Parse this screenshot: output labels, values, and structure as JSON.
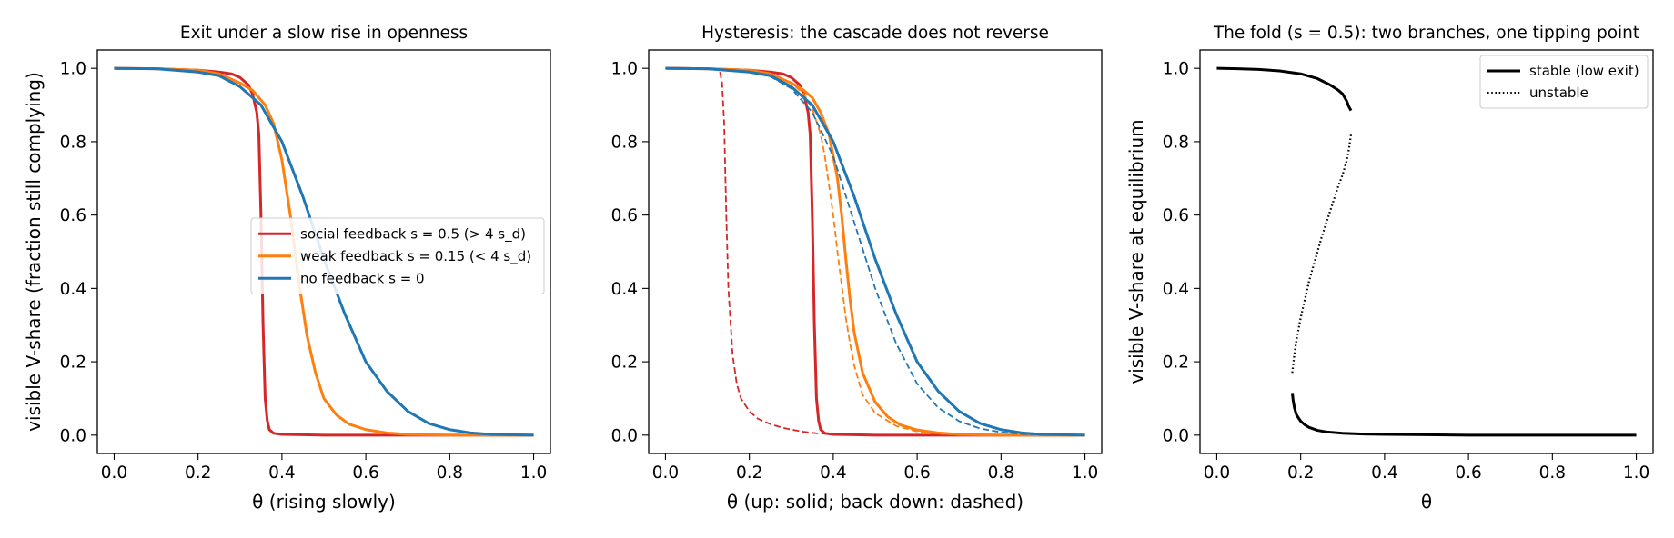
{
  "colors": {
    "social": "#d62728",
    "weak": "#ff7f0e",
    "none": "#1f77b4",
    "stable": "#000000",
    "unstable": "#000000"
  },
  "chart_data": [
    {
      "type": "line",
      "title": "Exit under a slow rise in openness",
      "xlabel": "θ (rising slowly)",
      "ylabel": "visible V-share (fraction still complying)",
      "xlim": [
        -0.04,
        1.04
      ],
      "ylim": [
        -0.05,
        1.05
      ],
      "xticks": [
        "0.0",
        "0.2",
        "0.4",
        "0.6",
        "0.8",
        "1.0"
      ],
      "yticks": [
        "0.0",
        "0.2",
        "0.4",
        "0.6",
        "0.8",
        "1.0"
      ],
      "grid": false,
      "legend_position": "center-right",
      "series": [
        {
          "name": "social feedback s = 0.5 (> 4 s_d)",
          "color_key": "social",
          "style": "solid",
          "x": [
            0.0,
            0.1,
            0.2,
            0.25,
            0.28,
            0.3,
            0.32,
            0.33,
            0.34,
            0.345,
            0.35,
            0.355,
            0.36,
            0.365,
            0.37,
            0.38,
            0.4,
            0.45,
            0.5,
            0.6,
            0.8,
            1.0
          ],
          "y": [
            1.0,
            0.999,
            0.995,
            0.99,
            0.985,
            0.975,
            0.955,
            0.93,
            0.88,
            0.82,
            0.6,
            0.3,
            0.1,
            0.04,
            0.015,
            0.005,
            0.002,
            0.001,
            0.0,
            0.0,
            0.0,
            0.0
          ]
        },
        {
          "name": "weak feedback s = 0.15 (< 4 s_d)",
          "color_key": "weak",
          "style": "solid",
          "x": [
            0.0,
            0.1,
            0.2,
            0.25,
            0.3,
            0.33,
            0.36,
            0.38,
            0.4,
            0.42,
            0.44,
            0.46,
            0.48,
            0.5,
            0.53,
            0.56,
            0.6,
            0.65,
            0.7,
            0.8,
            0.9,
            1.0
          ],
          "y": [
            1.0,
            0.999,
            0.995,
            0.985,
            0.96,
            0.94,
            0.9,
            0.85,
            0.75,
            0.6,
            0.42,
            0.27,
            0.17,
            0.1,
            0.055,
            0.03,
            0.015,
            0.006,
            0.002,
            0.0,
            0.0,
            0.0
          ]
        },
        {
          "name": "no feedback s = 0",
          "color_key": "none",
          "style": "solid",
          "x": [
            0.0,
            0.1,
            0.2,
            0.25,
            0.3,
            0.35,
            0.4,
            0.45,
            0.5,
            0.55,
            0.6,
            0.65,
            0.7,
            0.75,
            0.8,
            0.85,
            0.9,
            1.0
          ],
          "y": [
            1.0,
            0.999,
            0.99,
            0.98,
            0.95,
            0.9,
            0.8,
            0.65,
            0.48,
            0.33,
            0.2,
            0.12,
            0.065,
            0.032,
            0.015,
            0.006,
            0.002,
            0.0
          ]
        }
      ]
    },
    {
      "type": "line",
      "title": "Hysteresis: the cascade does not reverse",
      "xlabel": "θ (up: solid; back down: dashed)",
      "ylabel": "",
      "xlim": [
        -0.04,
        1.04
      ],
      "ylim": [
        -0.05,
        1.05
      ],
      "xticks": [
        "0.0",
        "0.2",
        "0.4",
        "0.6",
        "0.8",
        "1.0"
      ],
      "yticks": [
        "0.0",
        "0.2",
        "0.4",
        "0.6",
        "0.8",
        "1.0"
      ],
      "grid": false,
      "series": [
        {
          "color_key": "social",
          "style": "solid",
          "x": [
            0.0,
            0.1,
            0.2,
            0.25,
            0.28,
            0.3,
            0.32,
            0.33,
            0.34,
            0.345,
            0.35,
            0.355,
            0.36,
            0.365,
            0.37,
            0.38,
            0.4,
            0.45,
            0.5,
            0.6,
            0.8,
            1.0
          ],
          "y": [
            1.0,
            0.999,
            0.995,
            0.99,
            0.985,
            0.975,
            0.955,
            0.93,
            0.88,
            0.82,
            0.6,
            0.3,
            0.1,
            0.04,
            0.015,
            0.005,
            0.002,
            0.001,
            0.0,
            0.0,
            0.0,
            0.0
          ]
        },
        {
          "color_key": "social",
          "style": "dashed",
          "x": [
            0.13,
            0.135,
            0.14,
            0.145,
            0.15,
            0.16,
            0.17,
            0.18,
            0.2,
            0.22,
            0.25,
            0.28,
            0.3,
            0.33,
            0.36,
            0.38,
            0.4,
            0.5,
            0.6,
            0.8,
            1.0
          ],
          "y": [
            0.99,
            0.96,
            0.85,
            0.6,
            0.4,
            0.22,
            0.14,
            0.1,
            0.065,
            0.045,
            0.03,
            0.02,
            0.015,
            0.009,
            0.005,
            0.004,
            0.003,
            0.001,
            0.0,
            0.0,
            0.0
          ]
        },
        {
          "color_key": "weak",
          "style": "solid",
          "x": [
            0.0,
            0.1,
            0.2,
            0.25,
            0.3,
            0.33,
            0.35,
            0.37,
            0.39,
            0.41,
            0.42,
            0.43,
            0.44,
            0.45,
            0.47,
            0.5,
            0.53,
            0.56,
            0.6,
            0.65,
            0.7,
            0.8,
            0.9,
            1.0
          ],
          "y": [
            1.0,
            0.999,
            0.995,
            0.985,
            0.96,
            0.94,
            0.92,
            0.88,
            0.82,
            0.7,
            0.6,
            0.48,
            0.37,
            0.28,
            0.17,
            0.09,
            0.05,
            0.028,
            0.014,
            0.006,
            0.002,
            0.0,
            0.0,
            0.0
          ]
        },
        {
          "color_key": "weak",
          "style": "dashed",
          "x": [
            0.0,
            0.1,
            0.2,
            0.25,
            0.3,
            0.33,
            0.35,
            0.37,
            0.38,
            0.39,
            0.4,
            0.41,
            0.42,
            0.43,
            0.44,
            0.45,
            0.47,
            0.5,
            0.55,
            0.6,
            0.65,
            0.7,
            0.8,
            1.0
          ],
          "y": [
            1.0,
            0.999,
            0.995,
            0.985,
            0.96,
            0.93,
            0.89,
            0.82,
            0.76,
            0.68,
            0.6,
            0.5,
            0.41,
            0.32,
            0.25,
            0.19,
            0.11,
            0.06,
            0.025,
            0.01,
            0.004,
            0.001,
            0.0,
            0.0
          ]
        },
        {
          "color_key": "none",
          "style": "solid",
          "x": [
            0.0,
            0.1,
            0.2,
            0.25,
            0.3,
            0.35,
            0.4,
            0.45,
            0.5,
            0.55,
            0.6,
            0.65,
            0.7,
            0.75,
            0.8,
            0.85,
            0.9,
            1.0
          ],
          "y": [
            1.0,
            0.999,
            0.99,
            0.98,
            0.95,
            0.9,
            0.8,
            0.65,
            0.48,
            0.33,
            0.2,
            0.12,
            0.065,
            0.032,
            0.015,
            0.006,
            0.002,
            0.0
          ]
        },
        {
          "color_key": "none",
          "style": "dashed",
          "x": [
            0.0,
            0.1,
            0.2,
            0.25,
            0.3,
            0.35,
            0.4,
            0.45,
            0.5,
            0.55,
            0.6,
            0.65,
            0.7,
            0.75,
            0.8,
            0.85,
            0.9,
            1.0
          ],
          "y": [
            1.0,
            0.999,
            0.99,
            0.978,
            0.945,
            0.88,
            0.76,
            0.58,
            0.4,
            0.25,
            0.14,
            0.075,
            0.038,
            0.018,
            0.008,
            0.003,
            0.001,
            0.0
          ]
        }
      ]
    },
    {
      "type": "line",
      "title": "The fold (s = 0.5): two branches, one tipping point",
      "xlabel": "θ",
      "ylabel": "visible V-share at equilibrium",
      "xlim": [
        -0.04,
        1.04
      ],
      "ylim": [
        -0.05,
        1.05
      ],
      "xticks": [
        "0.0",
        "0.2",
        "0.4",
        "0.6",
        "0.8",
        "1.0"
      ],
      "yticks": [
        "0.0",
        "0.2",
        "0.4",
        "0.6",
        "0.8",
        "1.0"
      ],
      "grid": false,
      "legend_position": "top-right",
      "series": [
        {
          "name": "stable (low exit)",
          "color_key": "stable",
          "style": "solid",
          "legend_style": "solid",
          "x": [
            0.0,
            0.05,
            0.1,
            0.15,
            0.2,
            0.24,
            0.27,
            0.29,
            0.3,
            0.31,
            0.315,
            0.32
          ],
          "y": [
            1.0,
            0.999,
            0.997,
            0.993,
            0.985,
            0.972,
            0.955,
            0.94,
            0.93,
            0.91,
            0.895,
            0.885
          ]
        },
        {
          "color_key": "stable",
          "style": "solid",
          "x": [
            0.18,
            0.182,
            0.185,
            0.19,
            0.2,
            0.21,
            0.22,
            0.24,
            0.26,
            0.3,
            0.35,
            0.4,
            0.5,
            0.6,
            0.8,
            1.0
          ],
          "y": [
            0.115,
            0.095,
            0.075,
            0.055,
            0.038,
            0.028,
            0.021,
            0.013,
            0.009,
            0.005,
            0.003,
            0.002,
            0.001,
            0.0,
            0.0,
            0.0
          ]
        },
        {
          "name": "unstable",
          "color_key": "unstable",
          "style": "dotted",
          "legend_style": "dotted",
          "x": [
            0.18,
            0.185,
            0.19,
            0.2,
            0.21,
            0.22,
            0.23,
            0.24,
            0.25,
            0.26,
            0.27,
            0.28,
            0.29,
            0.3,
            0.31,
            0.315,
            0.32
          ],
          "y": [
            0.17,
            0.22,
            0.26,
            0.32,
            0.37,
            0.42,
            0.46,
            0.5,
            0.54,
            0.575,
            0.61,
            0.645,
            0.68,
            0.71,
            0.75,
            0.78,
            0.82
          ]
        }
      ]
    }
  ]
}
